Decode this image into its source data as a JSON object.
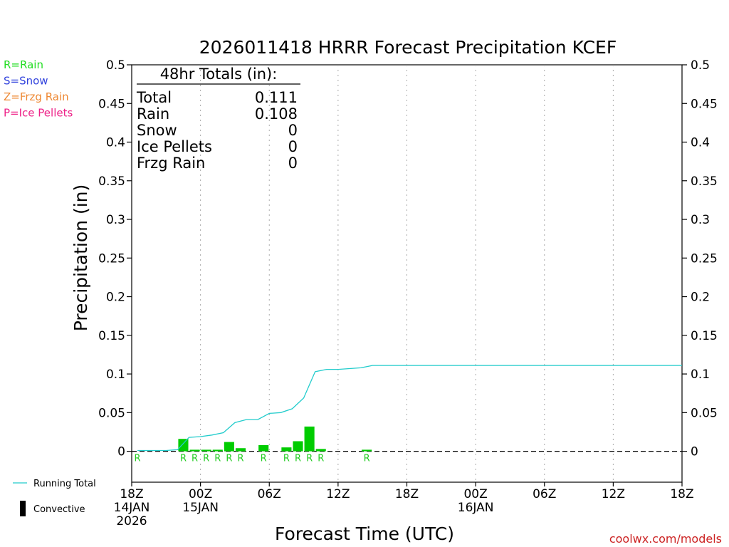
{
  "chart_data": {
    "type": "bar",
    "title": "2026011418 HRRR Forecast Precipitation KCEF",
    "xlabel": "Forecast Time (UTC)",
    "ylabel": "Precipitation (in)",
    "ylim": [
      -0.04,
      0.5
    ],
    "xlim_hours": [
      0,
      48
    ],
    "grid": "vertical dotted every 6 hours",
    "y_ticks": [
      "0.5",
      "0.45",
      "0.4",
      "0.35",
      "0.3",
      "0.25",
      "0.2",
      "0.15",
      "0.1",
      "0.05",
      "0"
    ],
    "x_ticks": [
      {
        "hour": 0,
        "lines": [
          "18Z",
          "14JAN",
          "2026"
        ]
      },
      {
        "hour": 6,
        "lines": [
          "00Z",
          "15JAN"
        ]
      },
      {
        "hour": 12,
        "lines": [
          "06Z"
        ]
      },
      {
        "hour": 18,
        "lines": [
          "12Z"
        ]
      },
      {
        "hour": 24,
        "lines": [
          "18Z"
        ]
      },
      {
        "hour": 30,
        "lines": [
          "00Z",
          "16JAN"
        ]
      },
      {
        "hour": 36,
        "lines": [
          "06Z"
        ]
      },
      {
        "hour": 42,
        "lines": [
          "12Z"
        ]
      },
      {
        "hour": 48,
        "lines": [
          "18Z"
        ]
      }
    ],
    "hourly_bars": [
      {
        "hour": 5,
        "value": 0.016
      },
      {
        "hour": 6,
        "value": 0.002
      },
      {
        "hour": 7,
        "value": 0.002
      },
      {
        "hour": 8,
        "value": 0.002
      },
      {
        "hour": 9,
        "value": 0.012
      },
      {
        "hour": 10,
        "value": 0.004
      },
      {
        "hour": 12,
        "value": 0.008
      },
      {
        "hour": 14,
        "value": 0.005
      },
      {
        "hour": 15,
        "value": 0.013
      },
      {
        "hour": 16,
        "value": 0.032
      },
      {
        "hour": 17,
        "value": 0.003
      },
      {
        "hour": 21,
        "value": 0.002
      }
    ],
    "type_markers": {
      "label": "R",
      "hours": [
        1,
        5,
        6,
        7,
        8,
        9,
        10,
        12,
        14,
        15,
        16,
        17,
        21
      ]
    },
    "running_total": {
      "name": "Running Total",
      "points": [
        [
          0.5,
          0.001
        ],
        [
          1,
          0.001
        ],
        [
          2,
          0.001
        ],
        [
          3,
          0.001
        ],
        [
          4,
          0.002
        ],
        [
          5,
          0.018
        ],
        [
          6,
          0.019
        ],
        [
          7,
          0.021
        ],
        [
          8,
          0.024
        ],
        [
          9,
          0.037
        ],
        [
          10,
          0.041
        ],
        [
          11,
          0.041
        ],
        [
          12,
          0.049
        ],
        [
          13,
          0.05
        ],
        [
          14,
          0.055
        ],
        [
          15,
          0.069
        ],
        [
          16,
          0.103
        ],
        [
          17,
          0.106
        ],
        [
          18,
          0.106
        ],
        [
          19,
          0.107
        ],
        [
          20,
          0.108
        ],
        [
          21,
          0.111
        ],
        [
          48,
          0.111
        ]
      ]
    },
    "totals_box": {
      "heading": "48hr Totals (in):",
      "rows": [
        {
          "label": "Total",
          "value": "0.111"
        },
        {
          "label": "Rain",
          "value": "0.108"
        },
        {
          "label": "Snow",
          "value": "0"
        },
        {
          "label": "Ice Pellets",
          "value": "0"
        },
        {
          "label": "Frzg Rain",
          "value": "0"
        }
      ]
    },
    "type_legend": [
      {
        "text": "R=Rain",
        "color": "#22dd22"
      },
      {
        "text": "S=Snow",
        "color": "#3344dd"
      },
      {
        "text": "Z=Frzg Rain",
        "color": "#ee8833"
      },
      {
        "text": "P=Ice Pellets",
        "color": "#ee2288"
      }
    ],
    "bottom_legend": [
      {
        "text": "Running Total",
        "symbol": "line",
        "color": "#22cccc"
      },
      {
        "text": "Convective",
        "symbol": "block",
        "color": "#000000"
      }
    ],
    "credit": "coolwx.com/models",
    "colors": {
      "bar": "#00cc00",
      "running_total": "#22cccc",
      "marker": "#22cc22",
      "grid": "#aaaaaa",
      "credit": "#cc2222"
    }
  }
}
